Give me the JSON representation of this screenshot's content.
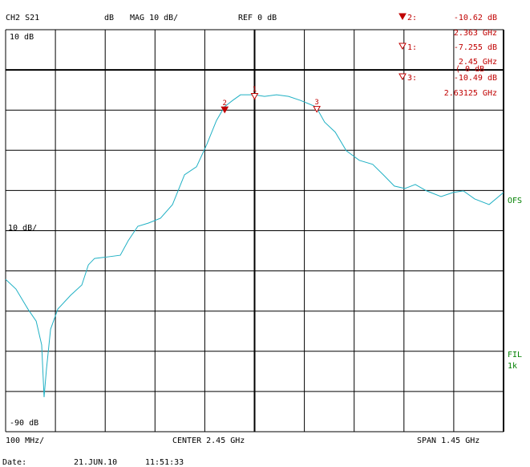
{
  "chart_data": {
    "type": "line",
    "header": {
      "channel": "CH2 S21",
      "unit": "dB",
      "format": "MAG 10 dB/",
      "reference": "REF 0 dB"
    },
    "ref": {
      "value": 0,
      "label": "REF 0 dB"
    },
    "center": {
      "value": 2.45,
      "label": "CENTER 2.45 GHz"
    },
    "scale_label": "10 dB/",
    "x_start_label": "100 MHz/",
    "span_label": "SPAN 1.45 GHz",
    "xlim": [
      1.725,
      3.175
    ],
    "ylim": [
      -90,
      10
    ],
    "yticks": [
      {
        "value": 10,
        "label": "10 dB"
      },
      {
        "value": -90,
        "label": "-90 dB"
      }
    ],
    "grid": {
      "divisions": 10
    },
    "series": [
      {
        "name": "S21",
        "color": "#1fb0c4",
        "x": [
          1.725,
          1.755,
          1.79,
          1.814,
          1.83,
          1.837,
          1.844,
          1.856,
          1.877,
          1.914,
          1.947,
          1.966,
          1.984,
          2.024,
          2.059,
          2.082,
          2.11,
          2.141,
          2.176,
          2.211,
          2.246,
          2.281,
          2.311,
          2.339,
          2.362,
          2.386,
          2.409,
          2.449,
          2.479,
          2.514,
          2.549,
          2.584,
          2.629,
          2.654,
          2.685,
          2.717,
          2.755,
          2.794,
          2.825,
          2.857,
          2.888,
          2.918,
          2.951,
          2.993,
          3.028,
          3.058,
          3.091,
          3.133,
          3.175
        ],
        "values": [
          -52.1,
          -54.5,
          -59.5,
          -62.5,
          -68.4,
          -81.4,
          -74.4,
          -64.5,
          -59.5,
          -56.1,
          -53.5,
          -48.5,
          -46.9,
          -46.5,
          -46.1,
          -42.5,
          -38.9,
          -38.1,
          -36.9,
          -33.5,
          -26.1,
          -24.1,
          -18.5,
          -12.6,
          -9.2,
          -7.6,
          -6.2,
          -6.2,
          -6.6,
          -6.2,
          -6.6,
          -7.6,
          -9.2,
          -13.0,
          -15.5,
          -20.1,
          -22.5,
          -23.5,
          -26.1,
          -28.9,
          -29.5,
          -28.5,
          -30.1,
          -31.5,
          -30.5,
          -30.1,
          -32.1,
          -33.5,
          -30.5
        ]
      }
    ],
    "markers": [
      {
        "name": "2",
        "readout": "2:",
        "active": true,
        "x": 2.363,
        "x_label": "2.363 GHz",
        "y": -10.62,
        "y_label": "-10.62 dB"
      },
      {
        "name": "1",
        "readout": "1:",
        "active": false,
        "x": 2.45,
        "x_label": "2.45 GHz",
        "y": -7.255,
        "y_label": "-7.255 dB",
        "ref_label": "⟨ 0 dB"
      },
      {
        "name": "3",
        "readout": "3:",
        "active": false,
        "x": 2.63125,
        "x_label": "2.63125 GHz",
        "y": -10.49,
        "y_label": "-10.49 dB"
      }
    ],
    "marker_color": "#c00000",
    "side_labels": [
      "OFS",
      "FIL",
      "1k"
    ],
    "side_color": "#008000",
    "footer": {
      "label": "Date:",
      "date": "21.JUN.10",
      "time": "11:51:33"
    }
  }
}
